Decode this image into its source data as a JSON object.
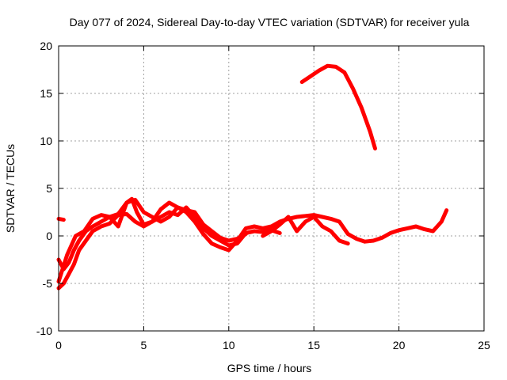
{
  "chart_data": {
    "type": "line",
    "title": "Day 077 of 2024, Sidereal Day-to-day VTEC variation (SDTVAR) for receiver yula",
    "xlabel": "GPS time / hours",
    "ylabel": "SDTVAR / TECUs",
    "xlim": [
      0,
      25
    ],
    "ylim": [
      -10,
      20
    ],
    "xticks": [
      0,
      5,
      10,
      15,
      20,
      25
    ],
    "yticks": [
      -10,
      -5,
      0,
      5,
      10,
      15,
      20
    ],
    "grid": true,
    "series_color": "#ff0000",
    "series": [
      {
        "name": "track-a",
        "x": [
          0.0,
          0.3,
          0.6,
          0.9,
          1.2,
          1.6,
          2.0,
          2.5,
          3.0,
          3.5,
          4.0,
          4.3,
          4.6,
          5.0,
          5.5,
          6.0,
          6.5,
          7.0,
          7.5,
          8.0,
          8.5,
          9.0,
          9.5,
          10.0,
          10.5,
          11.0,
          11.5,
          12.0,
          12.5,
          13.0,
          13.5,
          14.0,
          14.5,
          15.0,
          15.5,
          16.0,
          16.5,
          17.0,
          17.5,
          18.0,
          18.5,
          19.0,
          19.5,
          20.0,
          20.5,
          21.0,
          21.5,
          22.0,
          22.5,
          22.8
        ],
        "y": [
          -2.5,
          -3.5,
          -2.8,
          -1.5,
          -0.5,
          0.5,
          1.0,
          1.5,
          2.0,
          2.3,
          3.5,
          3.9,
          2.5,
          1.2,
          1.5,
          2.8,
          3.5,
          3.0,
          2.5,
          1.5,
          0.2,
          -0.8,
          -1.2,
          -1.5,
          -0.5,
          0.8,
          1.0,
          0.8,
          1.0,
          1.5,
          1.8,
          2.0,
          2.1,
          2.2,
          2.0,
          1.8,
          1.5,
          0.2,
          -0.3,
          -0.6,
          -0.5,
          -0.2,
          0.3,
          0.6,
          0.8,
          1.0,
          0.7,
          0.5,
          1.5,
          2.7
        ]
      },
      {
        "name": "track-b",
        "x": [
          0.0,
          0.3,
          0.6,
          0.9,
          1.2,
          1.6,
          2.0,
          2.5,
          3.0,
          3.5,
          4.0,
          4.5,
          5.0,
          5.5,
          6.0,
          6.5,
          7.0,
          7.5,
          8.0,
          8.5,
          9.0,
          9.5,
          10.0,
          10.5,
          11.0,
          11.5,
          12.0,
          12.5,
          13.0
        ],
        "y": [
          -5.5,
          -5.0,
          -4.0,
          -3.0,
          -1.5,
          -0.5,
          0.5,
          1.0,
          1.3,
          2.2,
          2.3,
          1.5,
          1.0,
          1.5,
          2.0,
          2.5,
          2.2,
          3.0,
          2.0,
          0.8,
          0.0,
          -0.5,
          -1.0,
          -0.8,
          0.3,
          0.5,
          0.4,
          0.6,
          0.3
        ]
      },
      {
        "name": "track-c",
        "x": [
          0.0,
          0.5,
          1.0,
          1.5,
          2.0,
          2.5,
          3.0,
          3.5,
          4.0,
          4.5,
          5.0,
          5.5,
          6.0,
          6.5,
          7.0,
          7.5,
          8.0,
          8.5,
          9.0,
          9.5,
          10.0,
          10.5,
          11.0
        ],
        "y": [
          -4.8,
          -2.0,
          0.0,
          0.5,
          1.8,
          2.2,
          2.0,
          1.0,
          3.5,
          3.8,
          2.5,
          2.0,
          1.5,
          2.0,
          3.0,
          2.7,
          2.5,
          1.2,
          0.5,
          -0.2,
          -0.5,
          -0.3,
          0.2
        ]
      },
      {
        "name": "track-d",
        "x": [
          12.0,
          12.5,
          13.0,
          13.5,
          14.0,
          14.5,
          15.0,
          15.5,
          16.0,
          16.5,
          17.0
        ],
        "y": [
          0.0,
          0.5,
          1.2,
          2.0,
          0.5,
          1.5,
          2.0,
          1.0,
          0.5,
          -0.5,
          -0.8
        ]
      },
      {
        "name": "track-e",
        "x": [
          0.0,
          0.3
        ],
        "y": [
          1.8,
          1.7
        ]
      },
      {
        "name": "track-f",
        "x": [
          14.3,
          14.8,
          15.3,
          15.8,
          16.3,
          16.8,
          17.3,
          17.8,
          18.3,
          18.6
        ],
        "y": [
          16.2,
          16.8,
          17.4,
          17.9,
          17.8,
          17.2,
          15.5,
          13.5,
          11.0,
          9.2
        ]
      }
    ]
  }
}
